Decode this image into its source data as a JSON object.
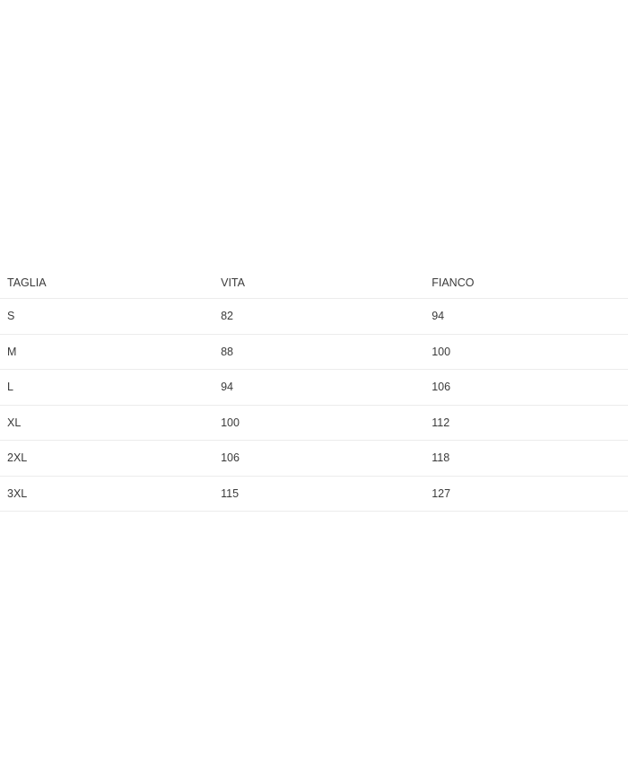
{
  "table": {
    "headers": [
      "TAGLIA",
      "VITA",
      "FIANCO"
    ],
    "rows": [
      [
        "S",
        "82",
        "94"
      ],
      [
        "M",
        "88",
        "100"
      ],
      [
        "L",
        "94",
        "106"
      ],
      [
        "XL",
        "100",
        "112"
      ],
      [
        "2XL",
        "106",
        "118"
      ],
      [
        "3XL",
        "115",
        "127"
      ]
    ]
  }
}
